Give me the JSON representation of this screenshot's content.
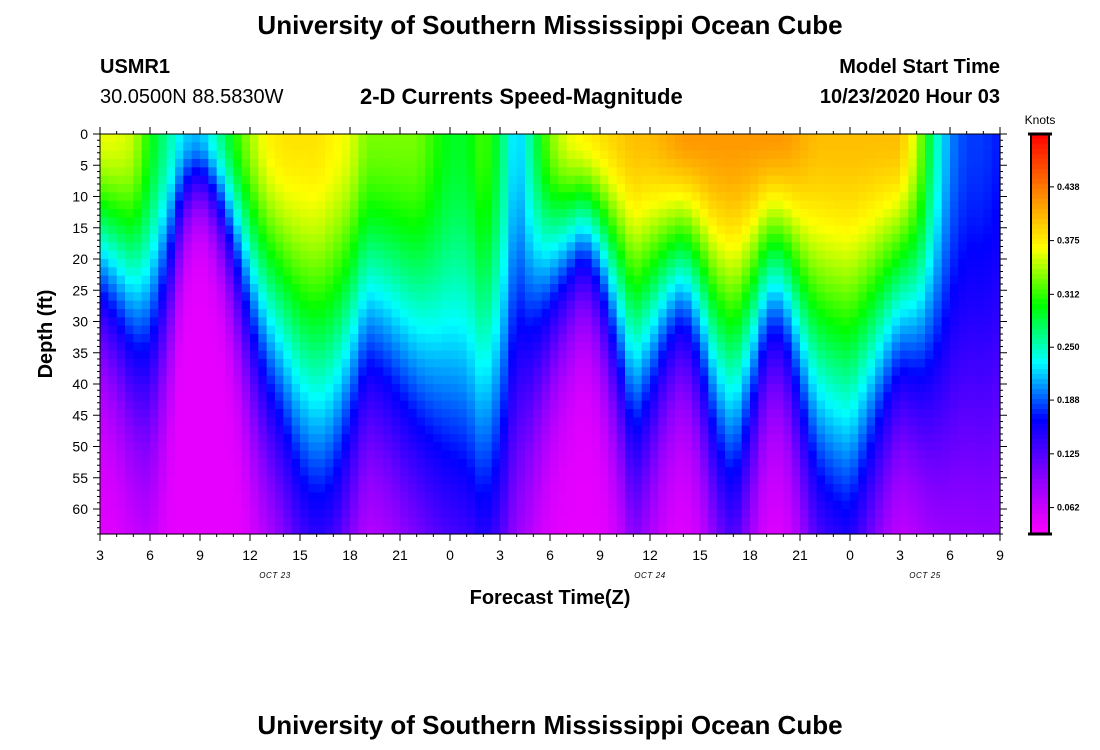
{
  "header": {
    "main_title": "University of Southern Mississippi Ocean Cube",
    "station_id": "USMR1",
    "coordinates": "30.0500N 88.5830W",
    "plot_title": "2-D Currents Speed-Magnitude",
    "model_start_label": "Model Start Time",
    "model_start_value": "10/23/2020 Hour 03"
  },
  "footer": {
    "title": "University of Southern Mississippi Ocean Cube"
  },
  "chart_data": {
    "type": "heatmap",
    "title": "2-D Currents Speed-Magnitude",
    "xlabel": "Forecast Time(Z)",
    "ylabel": "Depth (ft)",
    "x_range_hours": [
      0,
      54
    ],
    "y_range_ft": [
      0,
      64
    ],
    "x_tick_labels": [
      "3",
      "6",
      "9",
      "12",
      "15",
      "18",
      "21",
      "0",
      "3",
      "6",
      "9",
      "12",
      "15",
      "18",
      "21",
      "0",
      "3",
      "6",
      "9"
    ],
    "y_tick_labels": [
      "0",
      "5",
      "10",
      "15",
      "20",
      "25",
      "30",
      "35",
      "40",
      "45",
      "50",
      "55",
      "60"
    ],
    "date_labels": [
      {
        "text": "OCT 23",
        "hour": 10.5
      },
      {
        "text": "OCT 24",
        "hour": 33
      },
      {
        "text": "OCT 25",
        "hour": 49.5
      }
    ],
    "colorbar": {
      "unit": "Knots",
      "min": 0.031,
      "max": 0.5,
      "tick_labels": [
        "0.062",
        "0.125",
        "0.188",
        "0.250",
        "0.312",
        "0.375",
        "0.438"
      ],
      "tick_values": [
        0.062,
        0.125,
        0.188,
        0.25,
        0.312,
        0.375,
        0.438
      ]
    },
    "grid": false,
    "colormap": [
      "#ff00ff",
      "#8800ff",
      "#0000ff",
      "#00ffff",
      "#00ff00",
      "#ffff00",
      "#ff8000",
      "#ff0000"
    ],
    "field_keypoints": {
      "hours": [
        0,
        1,
        2,
        3,
        4,
        5,
        6,
        7,
        8,
        9,
        10,
        11,
        12,
        13,
        14,
        15,
        16,
        17,
        18,
        19,
        20,
        21,
        22,
        23,
        24,
        25,
        26,
        27,
        28,
        29,
        30,
        31,
        32,
        33,
        34,
        35,
        36,
        37,
        38,
        39,
        40,
        41,
        42,
        43,
        44,
        45,
        46,
        47,
        48,
        49,
        50,
        51,
        52,
        53,
        54
      ],
      "surface_speed": [
        0.36,
        0.36,
        0.35,
        0.3,
        0.26,
        0.22,
        0.21,
        0.25,
        0.3,
        0.34,
        0.37,
        0.38,
        0.38,
        0.38,
        0.37,
        0.36,
        0.33,
        0.33,
        0.33,
        0.33,
        0.31,
        0.29,
        0.29,
        0.32,
        0.28,
        0.21,
        0.27,
        0.33,
        0.36,
        0.37,
        0.38,
        0.39,
        0.4,
        0.4,
        0.41,
        0.42,
        0.42,
        0.42,
        0.42,
        0.42,
        0.42,
        0.42,
        0.41,
        0.4,
        0.4,
        0.4,
        0.4,
        0.4,
        0.4,
        0.35,
        0.26,
        0.2,
        0.18,
        0.18,
        0.17
      ],
      "decay_depth_ft": [
        26,
        30,
        36,
        40,
        30,
        14,
        10,
        14,
        22,
        32,
        40,
        46,
        54,
        58,
        56,
        48,
        40,
        42,
        46,
        50,
        56,
        62,
        64,
        66,
        64,
        54,
        40,
        30,
        24,
        20,
        24,
        34,
        46,
        40,
        32,
        28,
        34,
        46,
        52,
        42,
        30,
        30,
        40,
        52,
        56,
        58,
        50,
        42,
        36,
        40,
        48,
        56,
        60,
        62,
        62
      ]
    }
  }
}
